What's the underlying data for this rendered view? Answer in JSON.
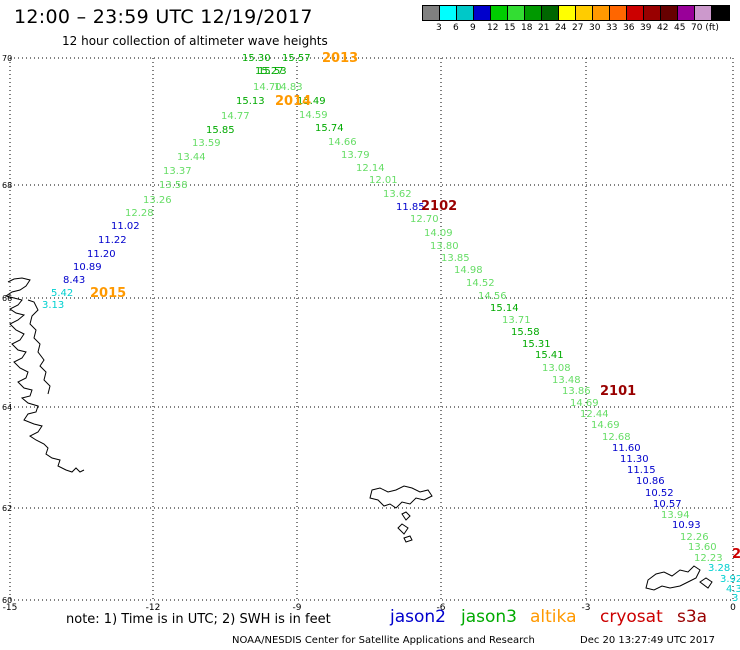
{
  "header": {
    "title": "12:00 – 23:59 UTC 12/19/2017",
    "subtitle": "12 hour collection of altimeter wave heights"
  },
  "colorscale": {
    "colors": [
      "#808080",
      "#00ffff",
      "#00c8c8",
      "#0000cc",
      "#00cc00",
      "#33dd33",
      "#009900",
      "#006600",
      "#ffff00",
      "#ffcc00",
      "#ff9900",
      "#ff6600",
      "#cc0000",
      "#990000",
      "#660000",
      "#990099",
      "#cc99cc",
      "#000000"
    ],
    "labels": [
      "3",
      "6",
      "9",
      "12",
      "15",
      "18",
      "21",
      "24",
      "27",
      "30",
      "33",
      "36",
      "39",
      "42",
      "45",
      "70 (ft)"
    ]
  },
  "axes": {
    "x_ticks": [
      "-15",
      "-12",
      "-9",
      "-6",
      "-3",
      "0"
    ],
    "y_ticks": [
      "70",
      "68",
      "66",
      "64",
      "62",
      "60"
    ]
  },
  "swh": {
    "pass_2013": {
      "label": "2013",
      "values": [
        "15.30",
        "15.57",
        "15.27",
        "15.53",
        "14.70",
        "14.83",
        "15.13",
        "15.49",
        "14.77",
        "15.85",
        "13.59",
        "13.44",
        "13.37",
        "13.58",
        "13.26",
        "12.28",
        "11.02",
        "11.22",
        "11.20",
        "10.89",
        "8.43",
        "5.42",
        "3.13"
      ]
    },
    "pass_2014": {
      "label": "2014"
    },
    "pass_2015": {
      "label": "2015"
    },
    "pass_2102": {
      "label": "2102",
      "values": [
        "14.59",
        "15.74",
        "14.66",
        "13.79",
        "12.14",
        "12.01",
        "13.62",
        "11.85",
        "12.70",
        "14.09",
        "13.80",
        "13.85",
        "14.98",
        "14.52",
        "14.56",
        "15.14",
        "13.71",
        "15.58",
        "15.31",
        "15.41",
        "13.08",
        "13.48",
        "13.86"
      ]
    },
    "pass_2101": {
      "label": "2101",
      "values": [
        "14.69",
        "12.44",
        "14.69",
        "12.68",
        "11.60",
        "11.30",
        "11.15",
        "10.86",
        "10.52",
        "10.57",
        "13.94",
        "10.93",
        "12.26",
        "13.60",
        "12.23",
        "3.28",
        "3.92",
        "4.3",
        "3"
      ]
    },
    "pass_edge": {
      "label": "2"
    }
  },
  "legend": {
    "note": "note: 1) Time is in UTC; 2) SWH is in feet",
    "satellites": [
      {
        "name": "jason2",
        "color": "#0000cc"
      },
      {
        "name": "jason3",
        "color": "#00aa00"
      },
      {
        "name": "altika",
        "color": "#ff9900"
      },
      {
        "name": "cryosat",
        "color": "#cc0000"
      },
      {
        "name": "s3a",
        "color": "#990000"
      }
    ]
  },
  "footer": {
    "credit": "NOAA/NESDIS Center for Satellite Applications and Research",
    "timestamp": "Dec 20 13:27:49 UTC 2017"
  }
}
